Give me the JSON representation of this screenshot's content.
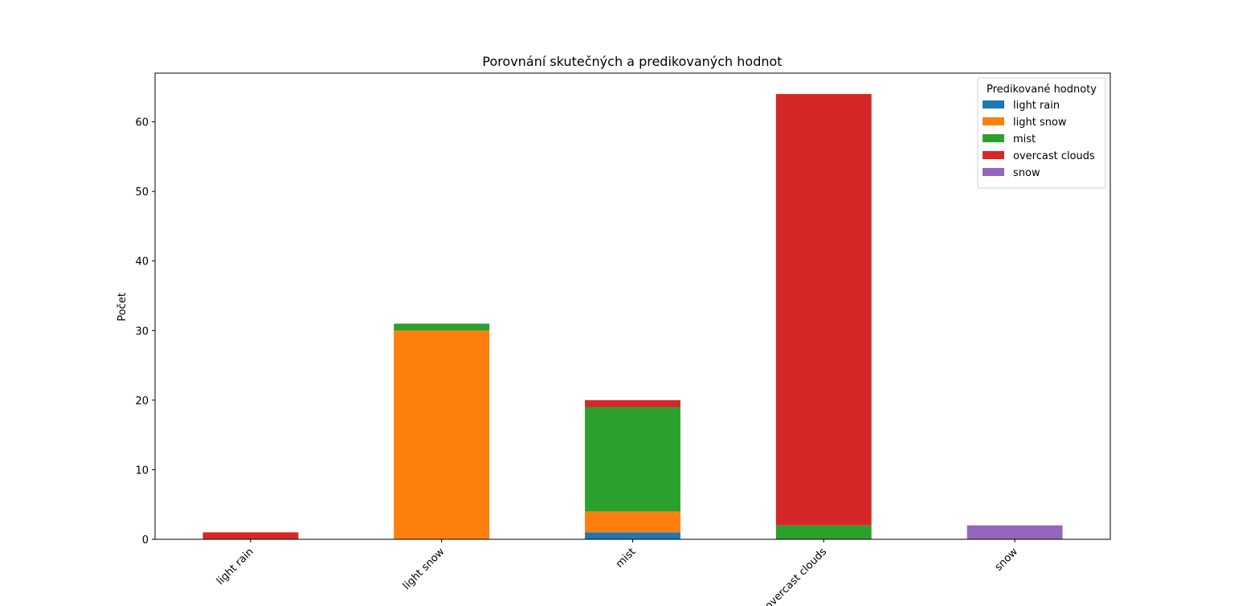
{
  "chart_data": {
    "type": "bar",
    "stacked": true,
    "title": "Porovnání skutečných a predikovaných hodnot",
    "xlabel": "",
    "ylabel": "Počet",
    "categories": [
      "light rain",
      "light snow",
      "mist",
      "overcast clouds",
      "snow"
    ],
    "ylim": [
      0,
      67
    ],
    "yticks": [
      0,
      10,
      20,
      30,
      40,
      50,
      60
    ],
    "grid": false,
    "legend": {
      "title": "Predikované hodnoty",
      "placement": "top-right"
    },
    "series": [
      {
        "name": "light rain",
        "color": "#1f77b4",
        "values": [
          0,
          0,
          1,
          0,
          0
        ]
      },
      {
        "name": "light snow",
        "color": "#ff7f0e",
        "values": [
          0,
          30,
          3,
          0,
          0
        ]
      },
      {
        "name": "mist",
        "color": "#2ca02c",
        "values": [
          0,
          1,
          15,
          2,
          0
        ]
      },
      {
        "name": "overcast clouds",
        "color": "#d62728",
        "values": [
          1,
          0,
          1,
          62,
          0
        ]
      },
      {
        "name": "snow",
        "color": "#9467bd",
        "values": [
          0,
          0,
          0,
          0,
          2
        ]
      }
    ]
  }
}
